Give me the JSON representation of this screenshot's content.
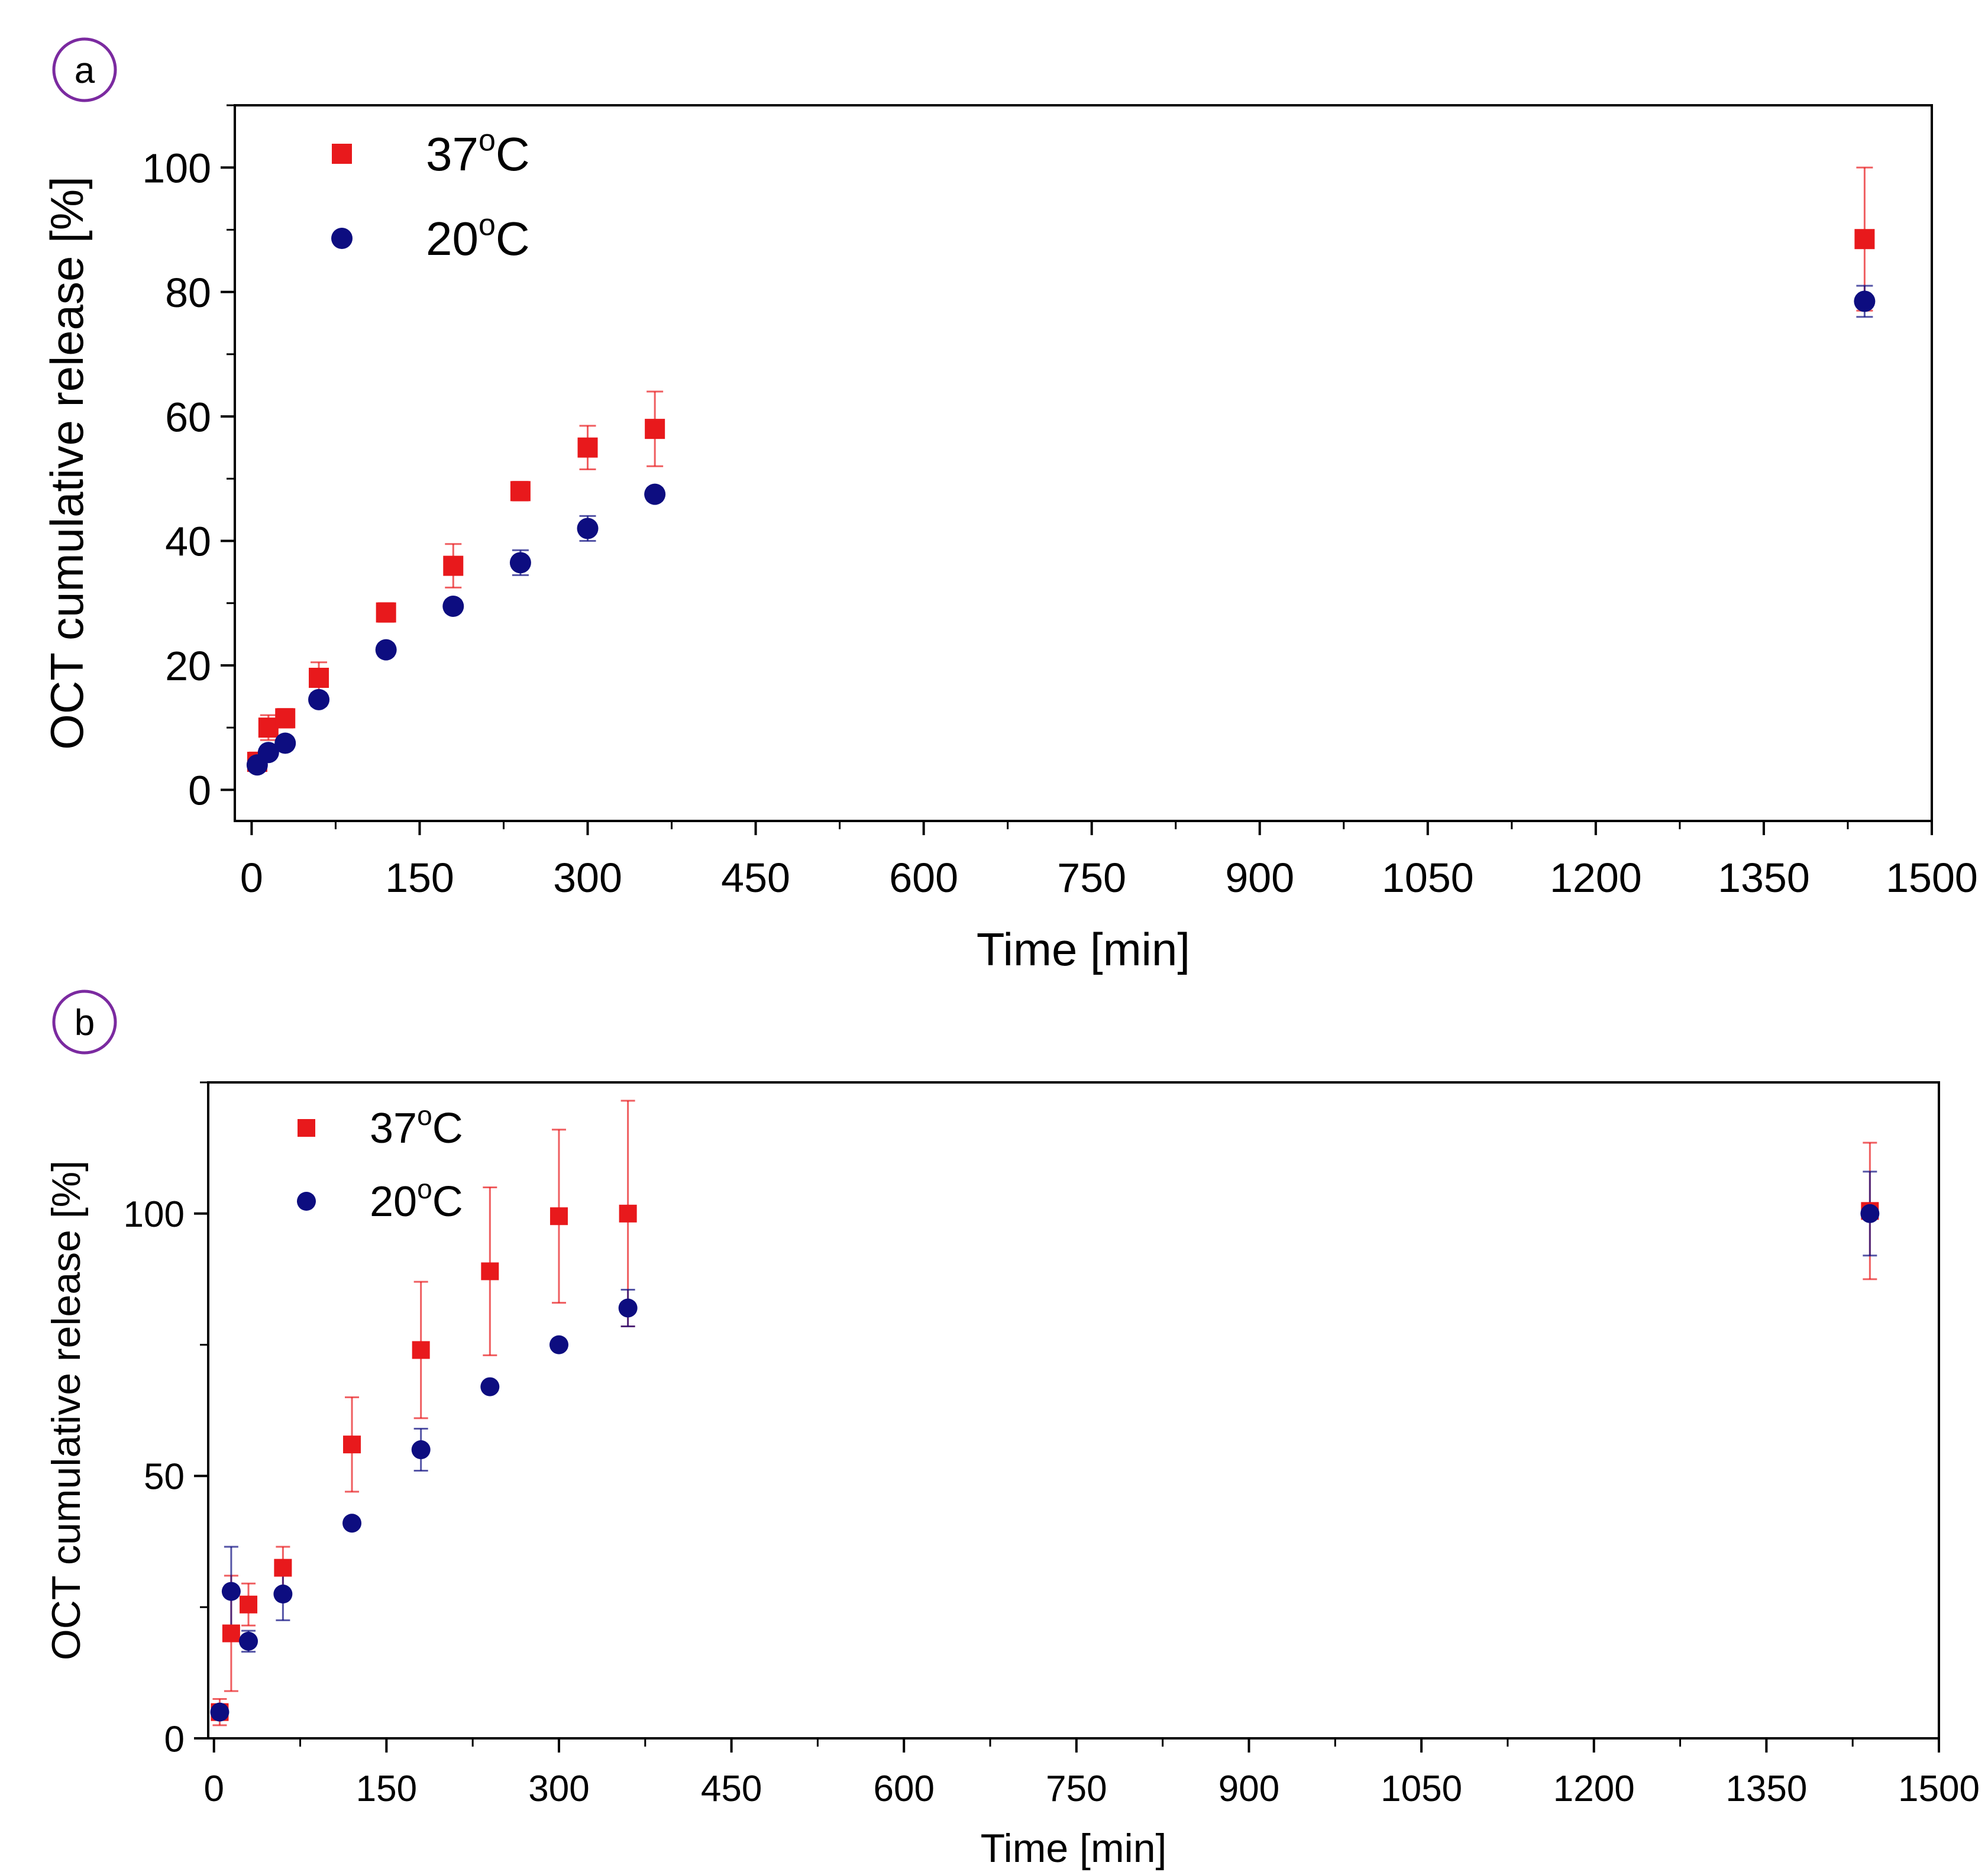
{
  "chart_data": [
    {
      "type": "scatter",
      "panel_label": "a",
      "title": "",
      "xlabel": "Time [min]",
      "ylabel": "OCT cumulative release [%]",
      "xlim": [
        -15,
        1500
      ],
      "ylim": [
        -5,
        110
      ],
      "xticks": [
        0,
        150,
        300,
        450,
        600,
        750,
        900,
        1050,
        1200,
        1350,
        1500
      ],
      "xtick_labels": [
        "0",
        "150",
        "300",
        "450",
        "600",
        "750",
        "900",
        "1050",
        "1200",
        "1350",
        "1500"
      ],
      "yticks": [
        0,
        20,
        40,
        60,
        80,
        100
      ],
      "ytick_labels": [
        "0",
        "20",
        "40",
        "60",
        "80",
        "100"
      ],
      "legend_position": "top-left",
      "series": [
        {
          "name": "37°C",
          "label_main": "37",
          "label_sup": "o",
          "label_end": "C",
          "marker": "square",
          "color": "#e8191c",
          "x": [
            5,
            15,
            30,
            60,
            120,
            180,
            240,
            300,
            360,
            1440
          ],
          "y": [
            4.5,
            10,
            11.5,
            18,
            28.5,
            36,
            48,
            55,
            58,
            88.5
          ],
          "err": [
            1.5,
            2,
            1.5,
            2.5,
            1.5,
            3.5,
            1.5,
            3.5,
            6,
            11.5
          ]
        },
        {
          "name": "20°C",
          "label_main": "20",
          "label_sup": "o",
          "label_end": "C",
          "marker": "circle",
          "color": "#0d0d80",
          "x": [
            5,
            15,
            30,
            60,
            120,
            180,
            240,
            300,
            360,
            1440
          ],
          "y": [
            4,
            6,
            7.5,
            14.5,
            22.5,
            29.5,
            36.5,
            42,
            47.5,
            78.5
          ],
          "err": [
            0.8,
            0.8,
            1,
            1,
            1,
            1,
            2,
            2,
            1,
            2.5
          ]
        }
      ]
    },
    {
      "type": "scatter",
      "panel_label": "b",
      "title": "",
      "xlabel": "Time [min]",
      "ylabel": "OCT cumulative release [%]",
      "xlim": [
        -5,
        1500
      ],
      "ylim": [
        0,
        125
      ],
      "xticks": [
        0,
        150,
        300,
        450,
        600,
        750,
        900,
        1050,
        1200,
        1350,
        1500
      ],
      "xtick_labels": [
        "0",
        "150",
        "300",
        "450",
        "600",
        "750",
        "900",
        "1050",
        "1200",
        "1350",
        "1500"
      ],
      "yticks": [
        0,
        50,
        100
      ],
      "ytick_labels": [
        "0",
        "50",
        "100"
      ],
      "legend_position": "top-left",
      "series": [
        {
          "name": "37°C",
          "label_main": "37",
          "label_sup": "o",
          "label_end": "C",
          "marker": "square",
          "color": "#e8191c",
          "x": [
            5,
            15,
            30,
            60,
            120,
            180,
            240,
            300,
            360,
            1440
          ],
          "y": [
            5,
            20,
            25.5,
            32.5,
            56,
            74,
            89,
            99.5,
            100,
            100.5
          ],
          "err": [
            2.5,
            11,
            4,
            4,
            9,
            13,
            16,
            16.5,
            21.5,
            13
          ]
        },
        {
          "name": "20°C",
          "label_main": "20",
          "label_sup": "o",
          "label_end": "C",
          "marker": "circle",
          "color": "#0d0d80",
          "x": [
            5,
            15,
            30,
            60,
            120,
            180,
            240,
            300,
            360,
            1440
          ],
          "y": [
            5,
            28,
            18.5,
            27.5,
            41,
            55,
            67,
            75,
            82,
            100
          ],
          "err": [
            1,
            8.5,
            2,
            5,
            1,
            4,
            1,
            1,
            3.5,
            8
          ]
        }
      ]
    }
  ]
}
